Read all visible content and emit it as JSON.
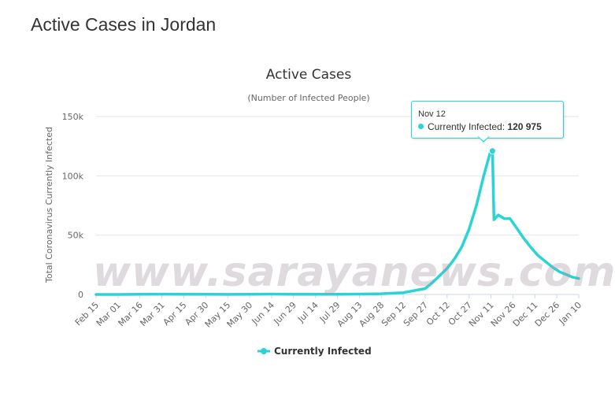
{
  "page": {
    "title": "Active Cases in Jordan"
  },
  "watermark": "www.sarayanews.com",
  "tooltip": {
    "date": "Nov 12",
    "label": "Currently Infected",
    "value": "120 975"
  },
  "colors": {
    "series": "#2ad4d6",
    "grid": "#e6e6e6",
    "axis": "#ccd6eb"
  },
  "chart_data": {
    "type": "line",
    "title": "Active Cases",
    "subtitle": "(Number of Infected People)",
    "ylabel": "Total Coronavirus Currently Infected",
    "xlabel": "",
    "ylim": [
      0,
      150000
    ],
    "yticks": [
      0,
      50000,
      100000,
      150000
    ],
    "ytick_labels": [
      "0",
      "50k",
      "100k",
      "150k"
    ],
    "x_start": "Feb 15",
    "x_end": "Jan 10",
    "xtick_labels": [
      "Feb 15",
      "Mar 01",
      "Mar 16",
      "Mar 31",
      "Apr 15",
      "Apr 30",
      "May 15",
      "May 30",
      "Jun 14",
      "Jun 29",
      "Jul 14",
      "Jul 29",
      "Aug 13",
      "Aug 28",
      "Sep 12",
      "Sep 27",
      "Oct 12",
      "Oct 27",
      "Nov 11",
      "Nov 26",
      "Dec 11",
      "Dec 26",
      "Jan 10"
    ],
    "legend": "bottom-center",
    "grid": true,
    "series": [
      {
        "name": "Currently Infected",
        "points": [
          [
            "Feb 15",
            0
          ],
          [
            "Mar 01",
            0
          ],
          [
            "Mar 16",
            100
          ],
          [
            "Mar 31",
            250
          ],
          [
            "Apr 15",
            200
          ],
          [
            "Apr 30",
            100
          ],
          [
            "May 15",
            50
          ],
          [
            "May 30",
            100
          ],
          [
            "Jun 14",
            300
          ],
          [
            "Jun 29",
            200
          ],
          [
            "Jul 14",
            100
          ],
          [
            "Jul 29",
            100
          ],
          [
            "Aug 13",
            300
          ],
          [
            "Aug 28",
            600
          ],
          [
            "Sep 12",
            1500
          ],
          [
            "Sep 27",
            5000
          ],
          [
            "Oct 02",
            10000
          ],
          [
            "Oct 07",
            16000
          ],
          [
            "Oct 12",
            22000
          ],
          [
            "Oct 17",
            30000
          ],
          [
            "Oct 22",
            40000
          ],
          [
            "Oct 27",
            55000
          ],
          [
            "Nov 01",
            75000
          ],
          [
            "Nov 06",
            100000
          ],
          [
            "Nov 11",
            122000
          ],
          [
            "Nov 12",
            120975
          ],
          [
            "Nov 13",
            63000
          ],
          [
            "Nov 16",
            67000
          ],
          [
            "Nov 20",
            64000
          ],
          [
            "Nov 24",
            64000
          ],
          [
            "Nov 28",
            57000
          ],
          [
            "Dec 03",
            48000
          ],
          [
            "Dec 08",
            40000
          ],
          [
            "Dec 13",
            33000
          ],
          [
            "Dec 18",
            28000
          ],
          [
            "Dec 23",
            23000
          ],
          [
            "Dec 28",
            19000
          ],
          [
            "Jan 02",
            16500
          ],
          [
            "Jan 06",
            14500
          ],
          [
            "Jan 10",
            13500
          ]
        ]
      }
    ]
  }
}
